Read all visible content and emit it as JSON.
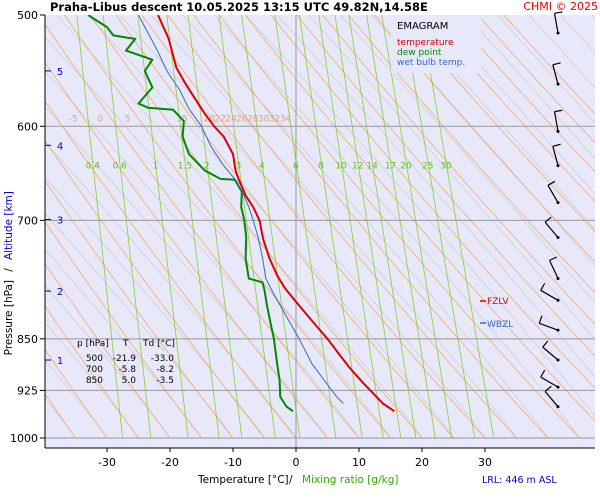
{
  "header": {
    "title": "Praha-Libus   descent   10.05.2025 13:15 UTC   49.82N,14.58E",
    "copyright": "CHMI © 2025"
  },
  "legend": {
    "title": "EMAGRAM",
    "temperature": "temperature",
    "dew_point": "dew point",
    "wet_bulb": "wet bulb temp."
  },
  "labels": {
    "ylabel_pressure": "Pressure [hPa]",
    "ylabel_sep": "/",
    "ylabel_altitude": "Altitude [km]",
    "xlabel_temp": "Temperature [°C]",
    "xlabel_sep": "/",
    "xlabel_mix": "Mixing ratio [g/kg]",
    "lrl": "LRL: 446 m ASL",
    "fzlv": "FZLV",
    "wbzl": "WBZL"
  },
  "table": {
    "headers": [
      "p [hPa]",
      "T",
      "Td [°C]"
    ],
    "rows": [
      [
        "500",
        "-21.9",
        "-33.0"
      ],
      [
        "700",
        "-5.8",
        "-8.2"
      ],
      [
        "850",
        "5.0",
        "-3.5"
      ]
    ]
  },
  "chart_data": {
    "type": "line",
    "title": "EMAGRAM",
    "x_axis": {
      "label": "Temperature [°C]",
      "range": [
        -45,
        45
      ],
      "ticks": [
        "-30",
        "-20",
        "-10",
        "0",
        "10",
        "20",
        "30"
      ]
    },
    "y_axis": {
      "label": "Pressure [hPa]",
      "scale": "log",
      "range": [
        1000,
        500
      ],
      "ticks": [
        "500",
        "600",
        "700",
        "850",
        "925",
        "1000"
      ]
    },
    "altitude_ticks": [
      {
        "label": "1",
        "p": 880
      },
      {
        "label": "2",
        "p": 786
      },
      {
        "label": "3",
        "p": 699
      },
      {
        "label": "4",
        "p": 619
      },
      {
        "label": "5",
        "p": 548
      }
    ],
    "dry_adiabat_labels": [
      "-5",
      "0",
      "5",
      "15",
      "20",
      "22",
      "24",
      "26",
      "28",
      "30",
      "32",
      "34"
    ],
    "mixing_ratio_labels": [
      "0.4",
      "0.6",
      "1",
      "1.5",
      "2",
      "3",
      "4",
      "6",
      "8",
      "10",
      "12",
      "14",
      "17",
      "20",
      "25",
      "30"
    ],
    "series": [
      {
        "name": "temperature",
        "color": "#dd0000",
        "points": [
          [
            15.6,
            957
          ],
          [
            13.8,
            945
          ],
          [
            12.8,
            935
          ],
          [
            10.5,
            912
          ],
          [
            8.4,
            890
          ],
          [
            6.7,
            870
          ],
          [
            5.0,
            850
          ],
          [
            3.5,
            835
          ],
          [
            1.2,
            812
          ],
          [
            -0.5,
            795
          ],
          [
            -1.8,
            782
          ],
          [
            -3.0,
            766
          ],
          [
            -4.2,
            745
          ],
          [
            -5.2,
            722
          ],
          [
            -5.8,
            700
          ],
          [
            -6.8,
            685
          ],
          [
            -8.0,
            672
          ],
          [
            -9.0,
            656
          ],
          [
            -9.6,
            645
          ],
          [
            -10.0,
            628
          ],
          [
            -11.5,
            610
          ],
          [
            -13.0,
            600
          ],
          [
            -14.8,
            585
          ],
          [
            -17.5,
            560
          ],
          [
            -19.0,
            545
          ],
          [
            -20.2,
            520
          ],
          [
            -21.9,
            500
          ]
        ]
      },
      {
        "name": "dew point",
        "color": "#008800",
        "points": [
          [
            -0.5,
            957
          ],
          [
            -1.5,
            950
          ],
          [
            -2.5,
            935
          ],
          [
            -2.6,
            910
          ],
          [
            -3.0,
            885
          ],
          [
            -3.5,
            850
          ],
          [
            -4.0,
            830
          ],
          [
            -4.6,
            805
          ],
          [
            -5.0,
            785
          ],
          [
            -5.3,
            775
          ],
          [
            -7.5,
            770
          ],
          [
            -8.0,
            745
          ],
          [
            -7.9,
            720
          ],
          [
            -8.2,
            700
          ],
          [
            -8.7,
            685
          ],
          [
            -8.6,
            668
          ],
          [
            -9.7,
            655
          ],
          [
            -12.0,
            654
          ],
          [
            -14.5,
            645
          ],
          [
            -17.0,
            628
          ],
          [
            -18.0,
            610
          ],
          [
            -17.8,
            595
          ],
          [
            -19.5,
            584
          ],
          [
            -23.5,
            582
          ],
          [
            -25.0,
            578
          ],
          [
            -22.8,
            563
          ],
          [
            -24.0,
            548
          ],
          [
            -22.8,
            538
          ],
          [
            -27.0,
            530
          ],
          [
            -25.5,
            520
          ],
          [
            -29.0,
            517
          ],
          [
            -30.0,
            510
          ],
          [
            -33.0,
            500
          ]
        ]
      },
      {
        "name": "wet bulb temp.",
        "color": "#3366cc",
        "points": [
          [
            7.5,
            945
          ],
          [
            6.5,
            935
          ],
          [
            4.5,
            910
          ],
          [
            2.5,
            885
          ],
          [
            0.5,
            850
          ],
          [
            -1.5,
            820
          ],
          [
            -3.5,
            790
          ],
          [
            -4.8,
            770
          ],
          [
            -5.3,
            745
          ],
          [
            -6.0,
            720
          ],
          [
            -6.8,
            700
          ],
          [
            -7.5,
            685
          ],
          [
            -8.5,
            668
          ],
          [
            -9.5,
            656
          ],
          [
            -11.5,
            640
          ],
          [
            -13.5,
            620
          ],
          [
            -15.0,
            600
          ],
          [
            -17.0,
            583
          ],
          [
            -18.5,
            565
          ],
          [
            -20.5,
            548
          ],
          [
            -22.0,
            530
          ],
          [
            -23.5,
            515
          ],
          [
            -25.0,
            500
          ]
        ]
      }
    ],
    "levels": [
      {
        "name": "FZLV",
        "p": 786
      },
      {
        "name": "WBZL",
        "p": 812
      }
    ],
    "wind_barbs": [
      {
        "p": 515,
        "dir": 350,
        "speed": 10
      },
      {
        "p": 560,
        "dir": 345,
        "speed": 10
      },
      {
        "p": 605,
        "dir": 350,
        "speed": 10
      },
      {
        "p": 640,
        "dir": 345,
        "speed": 10
      },
      {
        "p": 680,
        "dir": 330,
        "speed": 10
      },
      {
        "p": 720,
        "dir": 320,
        "speed": 10
      },
      {
        "p": 770,
        "dir": 335,
        "speed": 10
      },
      {
        "p": 798,
        "dir": 300,
        "speed": 10
      },
      {
        "p": 838,
        "dir": 290,
        "speed": 10
      },
      {
        "p": 880,
        "dir": 310,
        "speed": 10
      },
      {
        "p": 920,
        "dir": 300,
        "speed": 10
      },
      {
        "p": 950,
        "dir": 320,
        "speed": 10
      }
    ],
    "grid": true,
    "legend_position": "top-right"
  }
}
